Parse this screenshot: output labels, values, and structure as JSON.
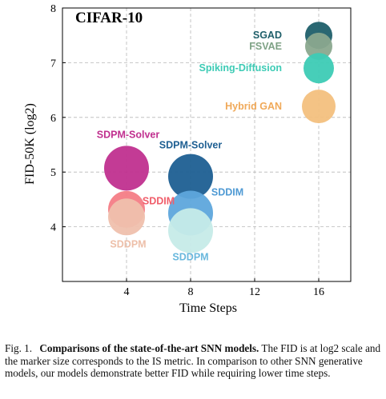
{
  "chart_data": {
    "type": "scatter",
    "title": "CIFAR-10",
    "xlabel": "Time Steps",
    "ylabel": "FID-50K (log2)",
    "xlim": [
      0,
      18
    ],
    "ylim": [
      3,
      8
    ],
    "xticks": [
      4,
      8,
      12,
      16
    ],
    "yticks": [
      4,
      5,
      6,
      7,
      8
    ],
    "grid": true,
    "points": [
      {
        "label": "SGAD",
        "x": 16,
        "y": 7.5,
        "size": 0.85,
        "color": "#1f5f6a",
        "label_color": "#1f5f6a"
      },
      {
        "label": "FSVAE",
        "x": 16,
        "y": 7.3,
        "size": 0.85,
        "color": "#8aa88e",
        "label_color": "#7ea285"
      },
      {
        "label": "Spiking-Diffusion",
        "x": 16,
        "y": 6.9,
        "size": 0.95,
        "color": "#3dcbb5",
        "label_color": "#3dcbb5"
      },
      {
        "label": "Hybrid GAN",
        "x": 16,
        "y": 6.2,
        "size": 1.05,
        "color": "#f3c07e",
        "label_color": "#f0a959"
      },
      {
        "label": "SDPM-Solver",
        "x": 4,
        "y": 5.07,
        "size": 1.4,
        "color": "#c0308f",
        "label_color": "#c0308f"
      },
      {
        "label": "SDDIM",
        "x": 4,
        "y": 4.32,
        "size": 1.15,
        "color": "#f47d86",
        "label_color": "#f05e6b"
      },
      {
        "label": "SDDPM",
        "x": 4,
        "y": 4.18,
        "size": 1.15,
        "color": "#efc0ad",
        "label_color": "#edbfa9"
      },
      {
        "label": "SDPM-Solver",
        "x": 8,
        "y": 4.92,
        "size": 1.4,
        "color": "#1e5f92",
        "label_color": "#1e5f92"
      },
      {
        "label": "SDDIM",
        "x": 8,
        "y": 4.25,
        "size": 1.4,
        "color": "#5ea6dc",
        "label_color": "#4f9ad4"
      },
      {
        "label": "SDDPM",
        "x": 8,
        "y": 3.93,
        "size": 1.4,
        "color": "#c6ebe8",
        "label_color": "#6ab8dd"
      }
    ]
  },
  "caption": {
    "fig_label": "Fig. 1.",
    "title": "Comparisons of the state-of-the-art SNN models.",
    "body": "The FID is at log2 scale and the marker size corresponds to the IS metric. In comparison to other SNN generative models, our models demonstrate better FID while requiring lower time steps."
  }
}
